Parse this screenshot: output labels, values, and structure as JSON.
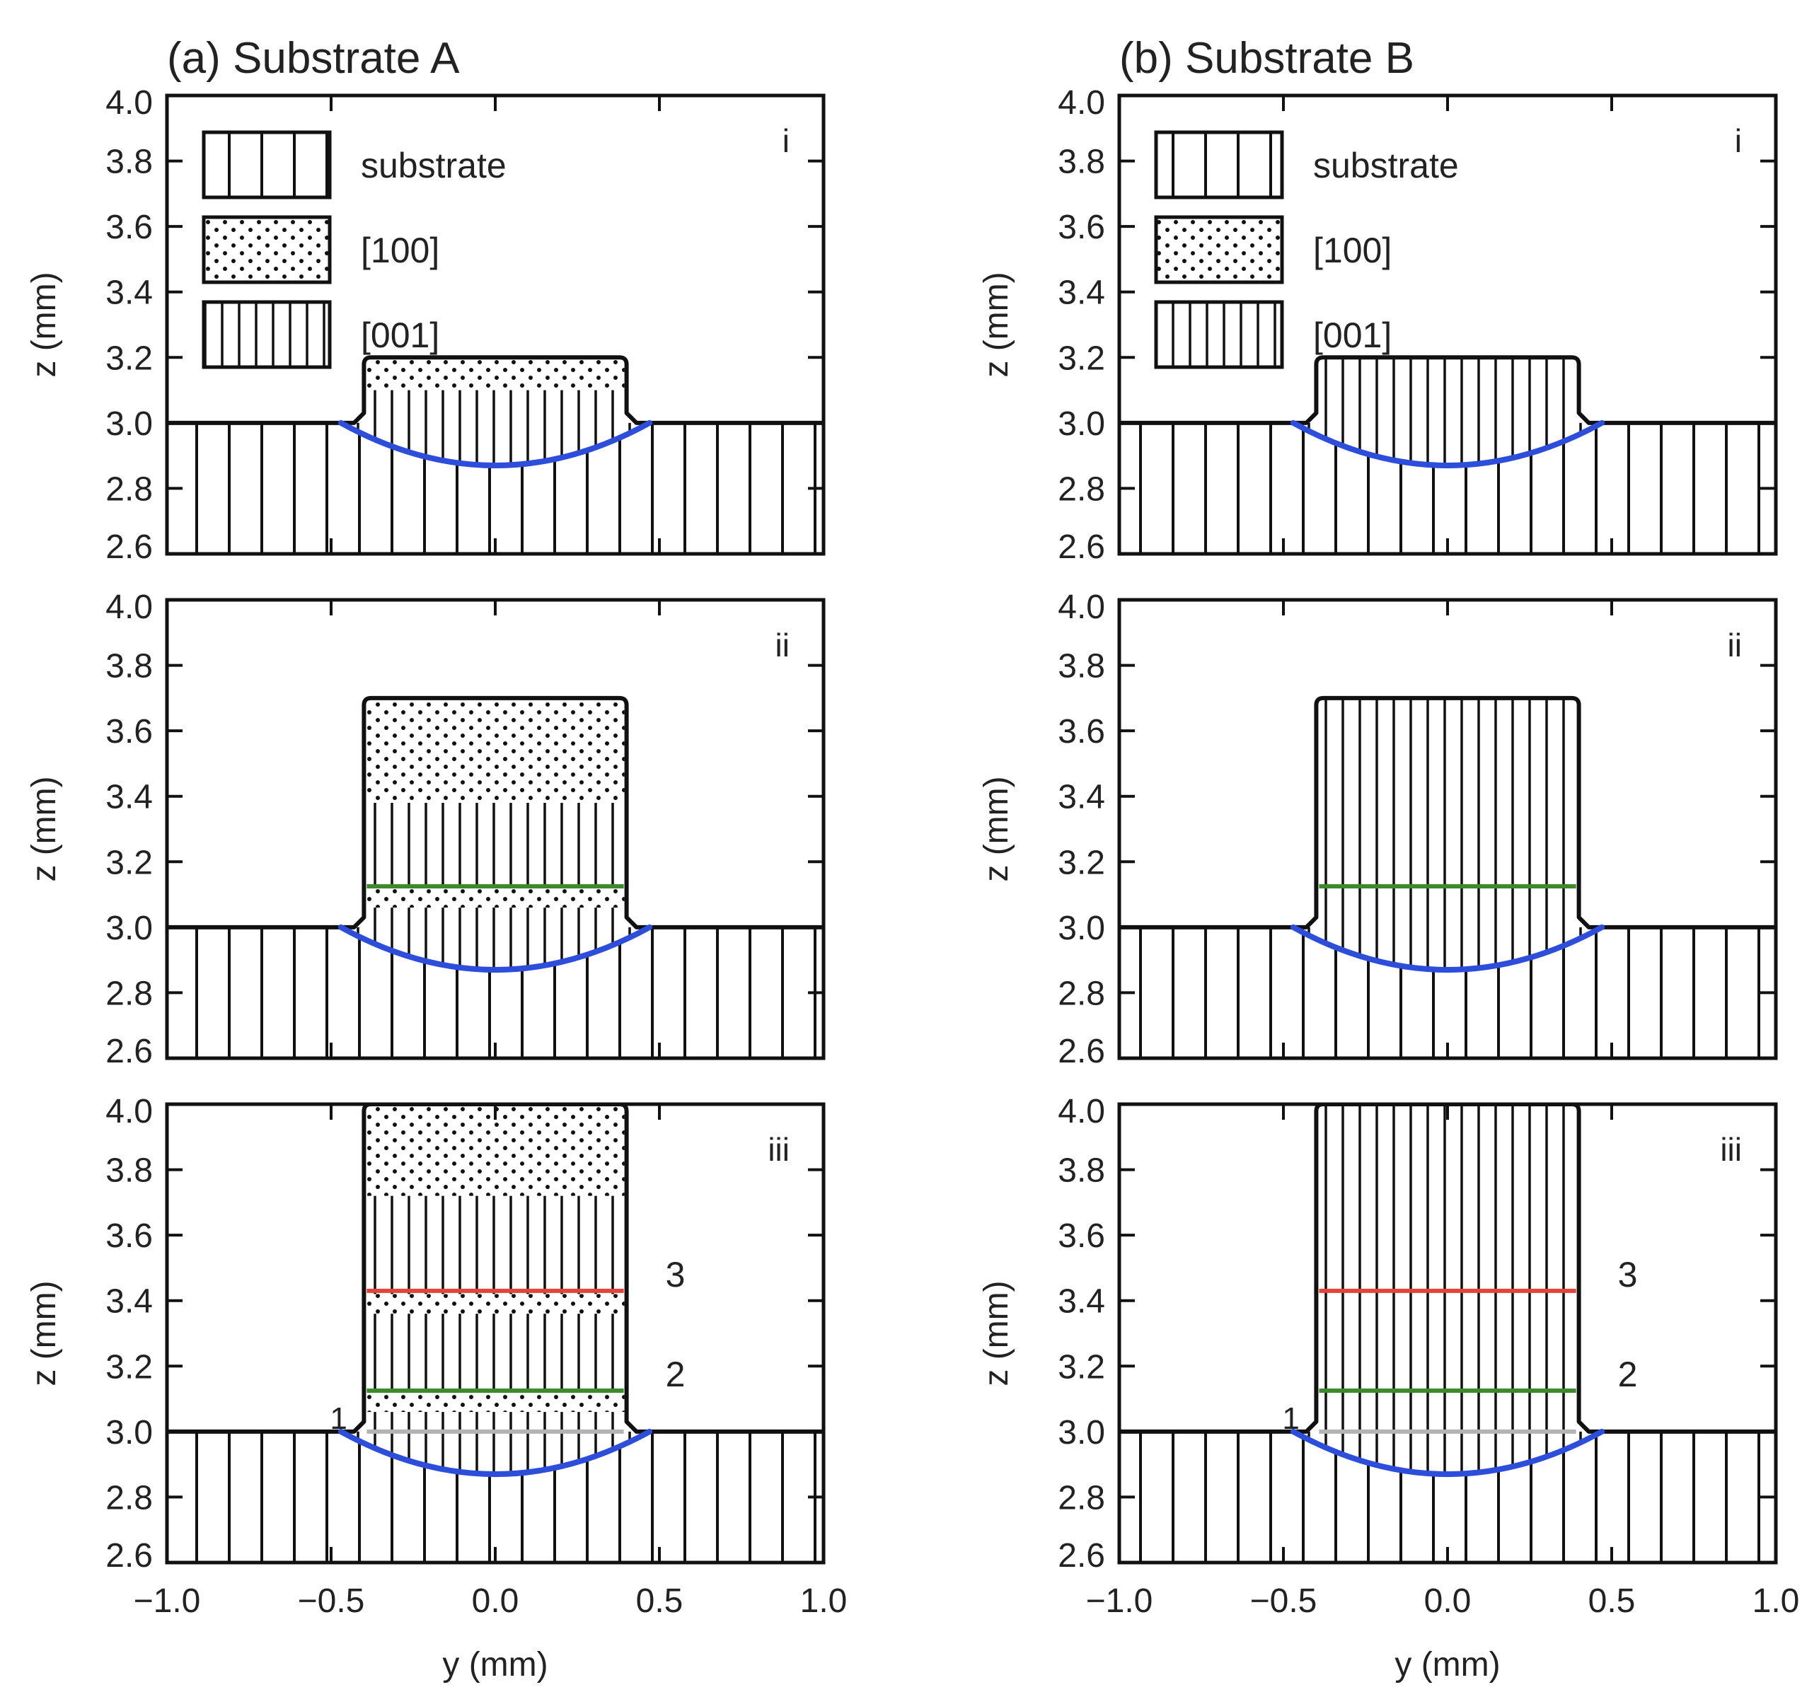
{
  "chart_data": [
    {
      "type": "diagram",
      "column_title": "(a) Substrate A",
      "panel_label": "i",
      "xlim": [
        -1.0,
        1.0
      ],
      "ylim": [
        2.6,
        4.0
      ],
      "xticks": [
        "−1.0",
        "−0.5",
        "0.0",
        "0.5",
        "1.0"
      ],
      "yticks": [
        "2.6",
        "2.8",
        "3.0",
        "3.2",
        "3.4",
        "3.6",
        "3.8",
        "4.0"
      ],
      "ylabel": "z (mm)",
      "xlabel": "",
      "substrate_top": 3.0,
      "deposit": {
        "y_left": -0.4,
        "y_right": 0.4,
        "z_top": 3.2
      },
      "regions": [
        {
          "pattern": "dot",
          "z_from": 3.1,
          "z_to": 3.2
        }
      ],
      "melt_pool": {
        "y_left": -0.47,
        "y_right": 0.47,
        "z_bottom": 2.87,
        "color": "#2d4ddb"
      },
      "lines": [],
      "legend": [
        {
          "pattern": "sub",
          "label": "substrate"
        },
        {
          "pattern": "dot",
          "label": "[100]"
        },
        {
          "pattern": "fine",
          "label": "[001]"
        }
      ]
    },
    {
      "type": "diagram",
      "column_title": "(b) Substrate B",
      "panel_label": "i",
      "xlim": [
        -1.0,
        1.0
      ],
      "ylim": [
        2.6,
        4.0
      ],
      "xticks": [
        "−1.0",
        "−0.5",
        "0.0",
        "0.5",
        "1.0"
      ],
      "yticks": [
        "2.6",
        "2.8",
        "3.0",
        "3.2",
        "3.4",
        "3.6",
        "3.8",
        "4.0"
      ],
      "ylabel": "z (mm)",
      "xlabel": "",
      "substrate_top": 3.0,
      "deposit": {
        "y_left": -0.4,
        "y_right": 0.4,
        "z_top": 3.2
      },
      "regions": [],
      "melt_pool": {
        "y_left": -0.47,
        "y_right": 0.47,
        "z_bottom": 2.87,
        "color": "#2d4ddb"
      },
      "lines": [],
      "legend": [
        {
          "pattern": "sub",
          "label": "substrate"
        },
        {
          "pattern": "dot",
          "label": "[100]"
        },
        {
          "pattern": "fine",
          "label": "[001]"
        }
      ]
    },
    {
      "type": "diagram",
      "panel_label": "ii",
      "xlim": [
        -1.0,
        1.0
      ],
      "ylim": [
        2.6,
        4.0
      ],
      "xticks": [
        "−1.0",
        "−0.5",
        "0.0",
        "0.5",
        "1.0"
      ],
      "yticks": [
        "2.6",
        "2.8",
        "3.0",
        "3.2",
        "3.4",
        "3.6",
        "3.8",
        "4.0"
      ],
      "ylabel": "z (mm)",
      "xlabel": "",
      "substrate_top": 3.0,
      "deposit": {
        "y_left": -0.4,
        "y_right": 0.4,
        "z_top": 3.7
      },
      "regions": [
        {
          "pattern": "dot",
          "z_from": 3.38,
          "z_to": 3.7
        },
        {
          "pattern": "dot",
          "z_from": 3.06,
          "z_to": 3.12
        }
      ],
      "melt_pool": {
        "y_left": -0.47,
        "y_right": 0.47,
        "z_bottom": 2.87,
        "color": "#2d4ddb"
      },
      "lines": [
        {
          "z": 3.125,
          "color": "#3c8a2c",
          "label": ""
        }
      ],
      "legend": []
    },
    {
      "type": "diagram",
      "panel_label": "ii",
      "xlim": [
        -1.0,
        1.0
      ],
      "ylim": [
        2.6,
        4.0
      ],
      "xticks": [
        "−1.0",
        "−0.5",
        "0.0",
        "0.5",
        "1.0"
      ],
      "yticks": [
        "2.6",
        "2.8",
        "3.0",
        "3.2",
        "3.4",
        "3.6",
        "3.8",
        "4.0"
      ],
      "ylabel": "z (mm)",
      "xlabel": "",
      "substrate_top": 3.0,
      "deposit": {
        "y_left": -0.4,
        "y_right": 0.4,
        "z_top": 3.7
      },
      "regions": [],
      "melt_pool": {
        "y_left": -0.47,
        "y_right": 0.47,
        "z_bottom": 2.87,
        "color": "#2d4ddb"
      },
      "lines": [
        {
          "z": 3.125,
          "color": "#3c8a2c",
          "label": ""
        }
      ],
      "legend": []
    },
    {
      "type": "diagram",
      "panel_label": "iii",
      "xlim": [
        -1.0,
        1.0
      ],
      "ylim": [
        2.6,
        4.0
      ],
      "xticks": [
        "−1.0",
        "−0.5",
        "0.0",
        "0.5",
        "1.0"
      ],
      "yticks": [
        "2.6",
        "2.8",
        "3.0",
        "3.2",
        "3.4",
        "3.6",
        "3.8",
        "4.0"
      ],
      "ylabel": "z (mm)",
      "xlabel": "y (mm)",
      "substrate_top": 3.0,
      "deposit": {
        "y_left": -0.4,
        "y_right": 0.4,
        "z_top": 4.0
      },
      "regions": [
        {
          "pattern": "dot",
          "z_from": 3.72,
          "z_to": 4.0
        },
        {
          "pattern": "dot",
          "z_from": 3.36,
          "z_to": 3.42
        },
        {
          "pattern": "dot",
          "z_from": 3.06,
          "z_to": 3.12
        }
      ],
      "melt_pool": {
        "y_left": -0.47,
        "y_right": 0.47,
        "z_bottom": 2.87,
        "color": "#2d4ddb"
      },
      "lines": [
        {
          "z": 3.0,
          "color": "#b3b3b3",
          "label": "1"
        },
        {
          "z": 3.125,
          "color": "#3c8a2c",
          "label": "2"
        },
        {
          "z": 3.43,
          "color": "#e0443a",
          "label": "3"
        }
      ],
      "legend": []
    },
    {
      "type": "diagram",
      "panel_label": "iii",
      "xlim": [
        -1.0,
        1.0
      ],
      "ylim": [
        2.6,
        4.0
      ],
      "xticks": [
        "−1.0",
        "−0.5",
        "0.0",
        "0.5",
        "1.0"
      ],
      "yticks": [
        "2.6",
        "2.8",
        "3.0",
        "3.2",
        "3.4",
        "3.6",
        "3.8",
        "4.0"
      ],
      "ylabel": "z (mm)",
      "xlabel": "y (mm)",
      "substrate_top": 3.0,
      "deposit": {
        "y_left": -0.4,
        "y_right": 0.4,
        "z_top": 4.0
      },
      "regions": [],
      "melt_pool": {
        "y_left": -0.47,
        "y_right": 0.47,
        "z_bottom": 2.87,
        "color": "#2d4ddb"
      },
      "lines": [
        {
          "z": 3.0,
          "color": "#b3b3b3",
          "label": "1"
        },
        {
          "z": 3.125,
          "color": "#3c8a2c",
          "label": "2"
        },
        {
          "z": 3.43,
          "color": "#e0443a",
          "label": "3"
        }
      ],
      "legend": []
    }
  ]
}
